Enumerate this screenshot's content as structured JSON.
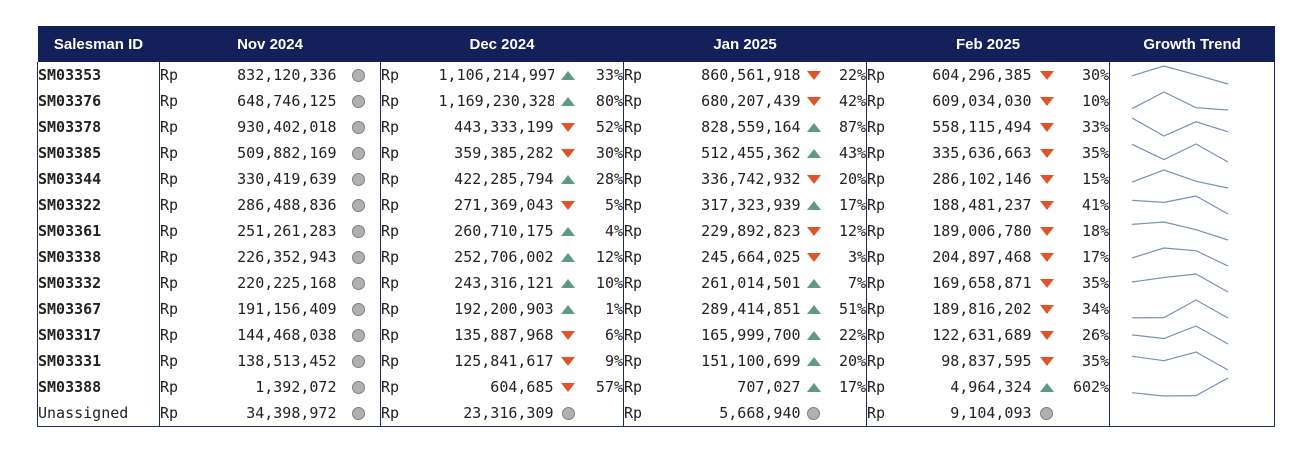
{
  "table": {
    "headers": [
      "Salesman ID",
      "Nov 2024",
      "Dec 2024",
      "Jan 2025",
      "Feb 2025",
      "Growth Trend"
    ],
    "currency": "Rp",
    "colors": {
      "header_bg": "#14205a",
      "up": "#5e9b82",
      "down": "#e0542a",
      "neutral": "#b0b0b0",
      "spark": "#7a8fb8"
    },
    "rows": [
      {
        "id": "SM03353",
        "nov": "832,120,336",
        "dec": "1,106,214,997",
        "dec_dir": "up",
        "dec_pct": "33%",
        "jan": "860,561,918",
        "jan_dir": "down",
        "jan_pct": "22%",
        "feb": "604,296,385",
        "feb_dir": "down",
        "feb_pct": "30%",
        "trend": [
          832120336,
          1106214997,
          860561918,
          604296385
        ]
      },
      {
        "id": "SM03376",
        "nov": "648,746,125",
        "dec": "1,169,230,328",
        "dec_dir": "up",
        "dec_pct": "80%",
        "jan": "680,207,439",
        "jan_dir": "down",
        "jan_pct": "42%",
        "feb": "609,034,030",
        "feb_dir": "down",
        "feb_pct": "10%",
        "trend": [
          648746125,
          1169230328,
          680207439,
          609034030
        ]
      },
      {
        "id": "SM03378",
        "nov": "930,402,018",
        "dec": "443,333,199",
        "dec_dir": "down",
        "dec_pct": "52%",
        "jan": "828,559,164",
        "jan_dir": "up",
        "jan_pct": "87%",
        "feb": "558,115,494",
        "feb_dir": "down",
        "feb_pct": "33%",
        "trend": [
          930402018,
          443333199,
          828559164,
          558115494
        ]
      },
      {
        "id": "SM03385",
        "nov": "509,882,169",
        "dec": "359,385,282",
        "dec_dir": "down",
        "dec_pct": "30%",
        "jan": "512,455,362",
        "jan_dir": "up",
        "jan_pct": "43%",
        "feb": "335,636,663",
        "feb_dir": "down",
        "feb_pct": "35%",
        "trend": [
          509882169,
          359385282,
          512455362,
          335636663
        ]
      },
      {
        "id": "SM03344",
        "nov": "330,419,639",
        "dec": "422,285,794",
        "dec_dir": "up",
        "dec_pct": "28%",
        "jan": "336,742,932",
        "jan_dir": "down",
        "jan_pct": "20%",
        "feb": "286,102,146",
        "feb_dir": "down",
        "feb_pct": "15%",
        "trend": [
          330419639,
          422285794,
          336742932,
          286102146
        ]
      },
      {
        "id": "SM03322",
        "nov": "286,488,836",
        "dec": "271,369,043",
        "dec_dir": "down",
        "dec_pct": "5%",
        "jan": "317,323,939",
        "jan_dir": "up",
        "jan_pct": "17%",
        "feb": "188,481,237",
        "feb_dir": "down",
        "feb_pct": "41%",
        "trend": [
          286488836,
          271369043,
          317323939,
          188481237
        ]
      },
      {
        "id": "SM03361",
        "nov": "251,261,283",
        "dec": "260,710,175",
        "dec_dir": "up",
        "dec_pct": "4%",
        "jan": "229,892,823",
        "jan_dir": "down",
        "jan_pct": "12%",
        "feb": "189,006,780",
        "feb_dir": "down",
        "feb_pct": "18%",
        "trend": [
          251261283,
          260710175,
          229892823,
          189006780
        ]
      },
      {
        "id": "SM03338",
        "nov": "226,352,943",
        "dec": "252,706,002",
        "dec_dir": "up",
        "dec_pct": "12%",
        "jan": "245,664,025",
        "jan_dir": "down",
        "jan_pct": "3%",
        "feb": "204,897,468",
        "feb_dir": "down",
        "feb_pct": "17%",
        "trend": [
          226352943,
          252706002,
          245664025,
          204897468
        ]
      },
      {
        "id": "SM03332",
        "nov": "220,225,168",
        "dec": "243,316,121",
        "dec_dir": "up",
        "dec_pct": "10%",
        "jan": "261,014,501",
        "jan_dir": "up",
        "jan_pct": "7%",
        "feb": "169,658,871",
        "feb_dir": "down",
        "feb_pct": "35%",
        "trend": [
          220225168,
          243316121,
          261014501,
          169658871
        ]
      },
      {
        "id": "SM03367",
        "nov": "191,156,409",
        "dec": "192,200,903",
        "dec_dir": "up",
        "dec_pct": "1%",
        "jan": "289,414,851",
        "jan_dir": "up",
        "jan_pct": "51%",
        "feb": "189,816,202",
        "feb_dir": "down",
        "feb_pct": "34%",
        "trend": [
          191156409,
          192200903,
          289414851,
          189816202
        ]
      },
      {
        "id": "SM03317",
        "nov": "144,468,038",
        "dec": "135,887,968",
        "dec_dir": "down",
        "dec_pct": "6%",
        "jan": "165,999,700",
        "jan_dir": "up",
        "jan_pct": "22%",
        "feb": "122,631,689",
        "feb_dir": "down",
        "feb_pct": "26%",
        "trend": [
          144468038,
          135887968,
          165999700,
          122631689
        ]
      },
      {
        "id": "SM03331",
        "nov": "138,513,452",
        "dec": "125,841,617",
        "dec_dir": "down",
        "dec_pct": "9%",
        "jan": "151,100,699",
        "jan_dir": "up",
        "jan_pct": "20%",
        "feb": "98,837,595",
        "feb_dir": "down",
        "feb_pct": "35%",
        "trend": [
          138513452,
          125841617,
          151100699,
          98837595
        ]
      },
      {
        "id": "SM03388",
        "nov": "1,392,072",
        "dec": "604,685",
        "dec_dir": "down",
        "dec_pct": "57%",
        "jan": "707,027",
        "jan_dir": "up",
        "jan_pct": "17%",
        "feb": "4,964,324",
        "feb_dir": "up",
        "feb_pct": "602%",
        "trend": [
          1392072,
          604685,
          707027,
          4964324
        ]
      },
      {
        "id": "Unassigned",
        "nov": "34,398,972",
        "dec": "23,316,309",
        "dec_dir": "neutral",
        "dec_pct": "",
        "jan": "5,668,940",
        "jan_dir": "neutral",
        "jan_pct": "",
        "feb": "9,104,093",
        "feb_dir": "neutral",
        "feb_pct": "",
        "trend": []
      }
    ]
  }
}
